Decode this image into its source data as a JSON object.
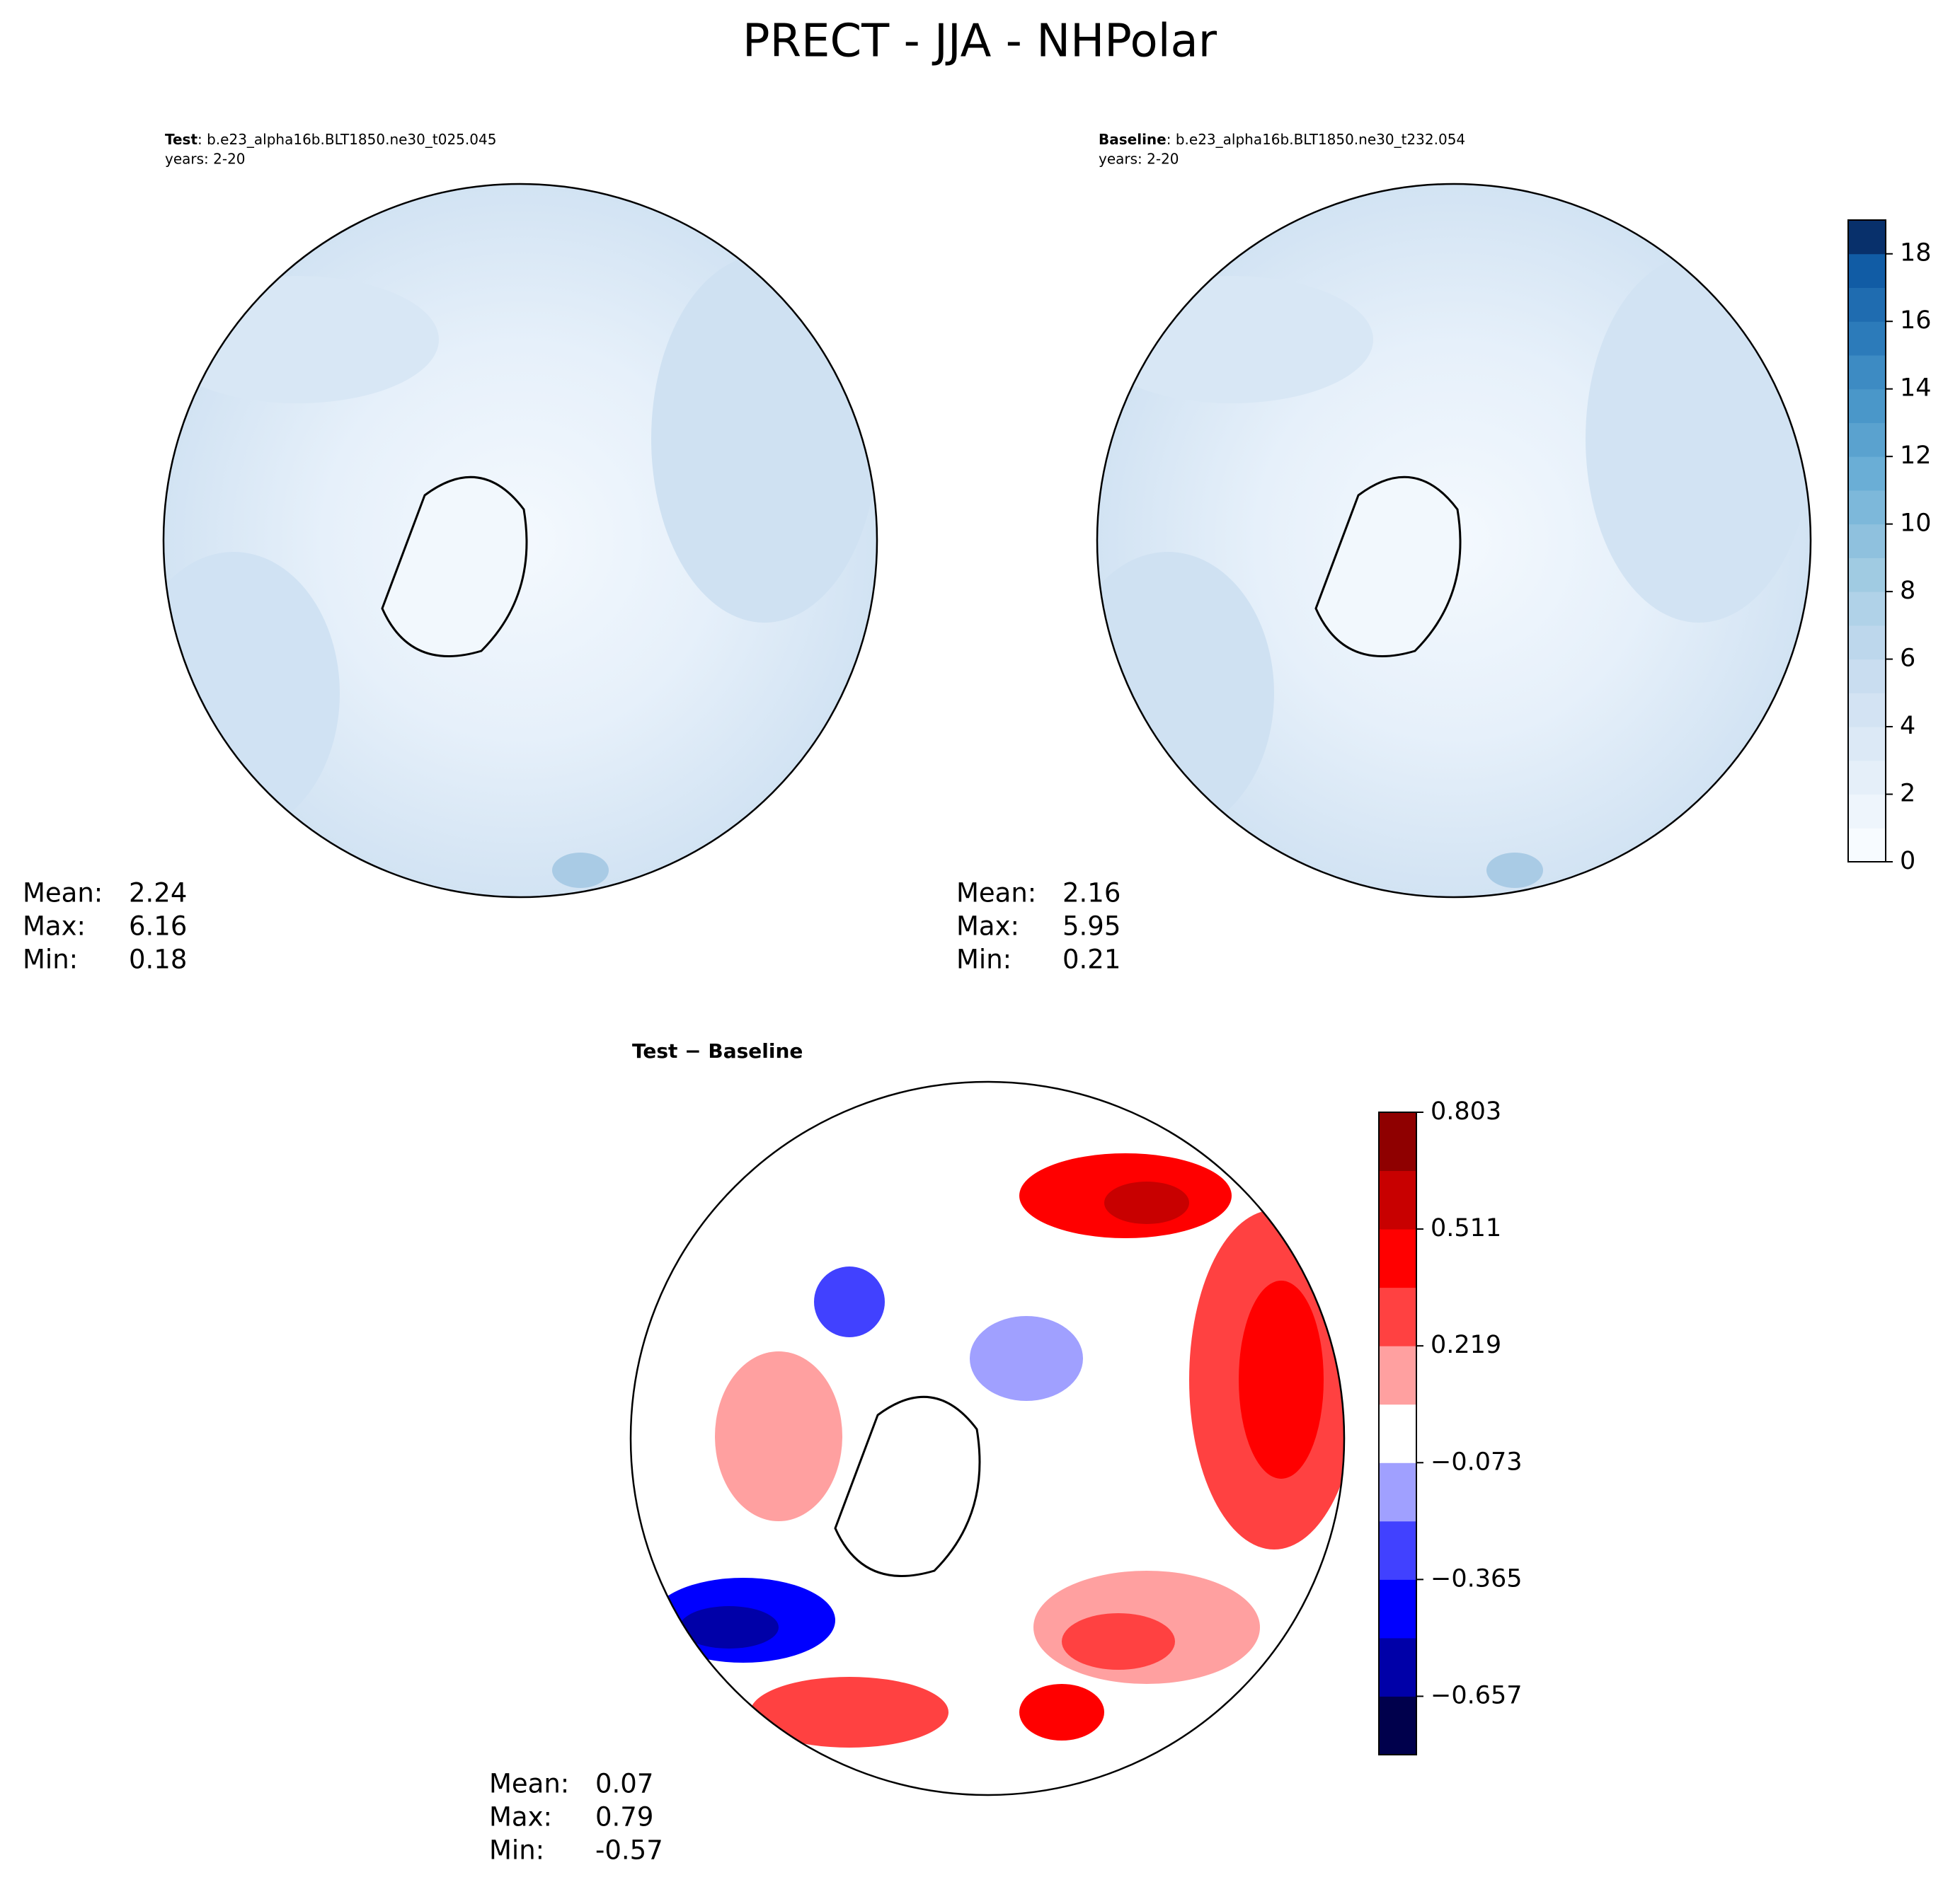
{
  "title": "PRECT - JJA - NHPolar",
  "panels": [
    {
      "name": "Test",
      "case": ": b.e23_alpha16b.BLT1850.ne30_t025.045",
      "years": "years: 2-20",
      "stats": [
        {
          "label": "Mean:",
          "value": 2.24
        },
        {
          "label": "Max:",
          "value": 6.16
        },
        {
          "label": "Min:",
          "value": 0.18
        }
      ]
    },
    {
      "name": "Baseline",
      "case": ": b.e23_alpha16b.BLT1850.ne30_t232.054",
      "years": "years: 2-20",
      "stats": [
        {
          "label": "Mean:",
          "value": 2.16
        },
        {
          "label": "Max:",
          "value": 5.95
        },
        {
          "label": "Min:",
          "value": 0.21
        }
      ]
    },
    {
      "name": "Test − Baseline",
      "stats": [
        {
          "label": "Mean:",
          "value": 0.07
        },
        {
          "label": "Max:",
          "value": 0.79
        },
        {
          "label": "Min:",
          "value": -0.57
        }
      ]
    }
  ],
  "colorbars": [
    {
      "clim": [
        0,
        19
      ],
      "ticks": [
        0,
        2,
        4,
        6,
        8,
        10,
        12,
        14,
        16,
        18
      ],
      "colors": [
        "#f7fbff",
        "#eef5fc",
        "#e5eff9",
        "#dce9f6",
        "#d3e3f3",
        "#c9ddf0",
        "#bdd7ec",
        "#b0d2e8",
        "#a0cbe2",
        "#8fc1de",
        "#7db8da",
        "#6aaed6",
        "#5aa2cf",
        "#4a97c9",
        "#3d8bc3",
        "#2c7bba",
        "#1f6cb0",
        "#115ca5",
        "#08306b"
      ]
    },
    {
      "clim": [
        -0.803,
        0.803
      ],
      "ticks": [
        0.803,
        0.511,
        0.219,
        {
          "value": -0.073,
          "label": "−0.073"
        },
        {
          "value": -0.365,
          "label": "−0.365"
        },
        {
          "value": -0.657,
          "label": "−0.657"
        }
      ],
      "colors": [
        "#00004c",
        "#0000a8",
        "#0000ff",
        "#4141ff",
        "#a0a0ff",
        "#ffffff",
        "#ffa0a0",
        "#ff4141",
        "#ff0000",
        "#c80000",
        "#8f0000"
      ]
    }
  ]
}
